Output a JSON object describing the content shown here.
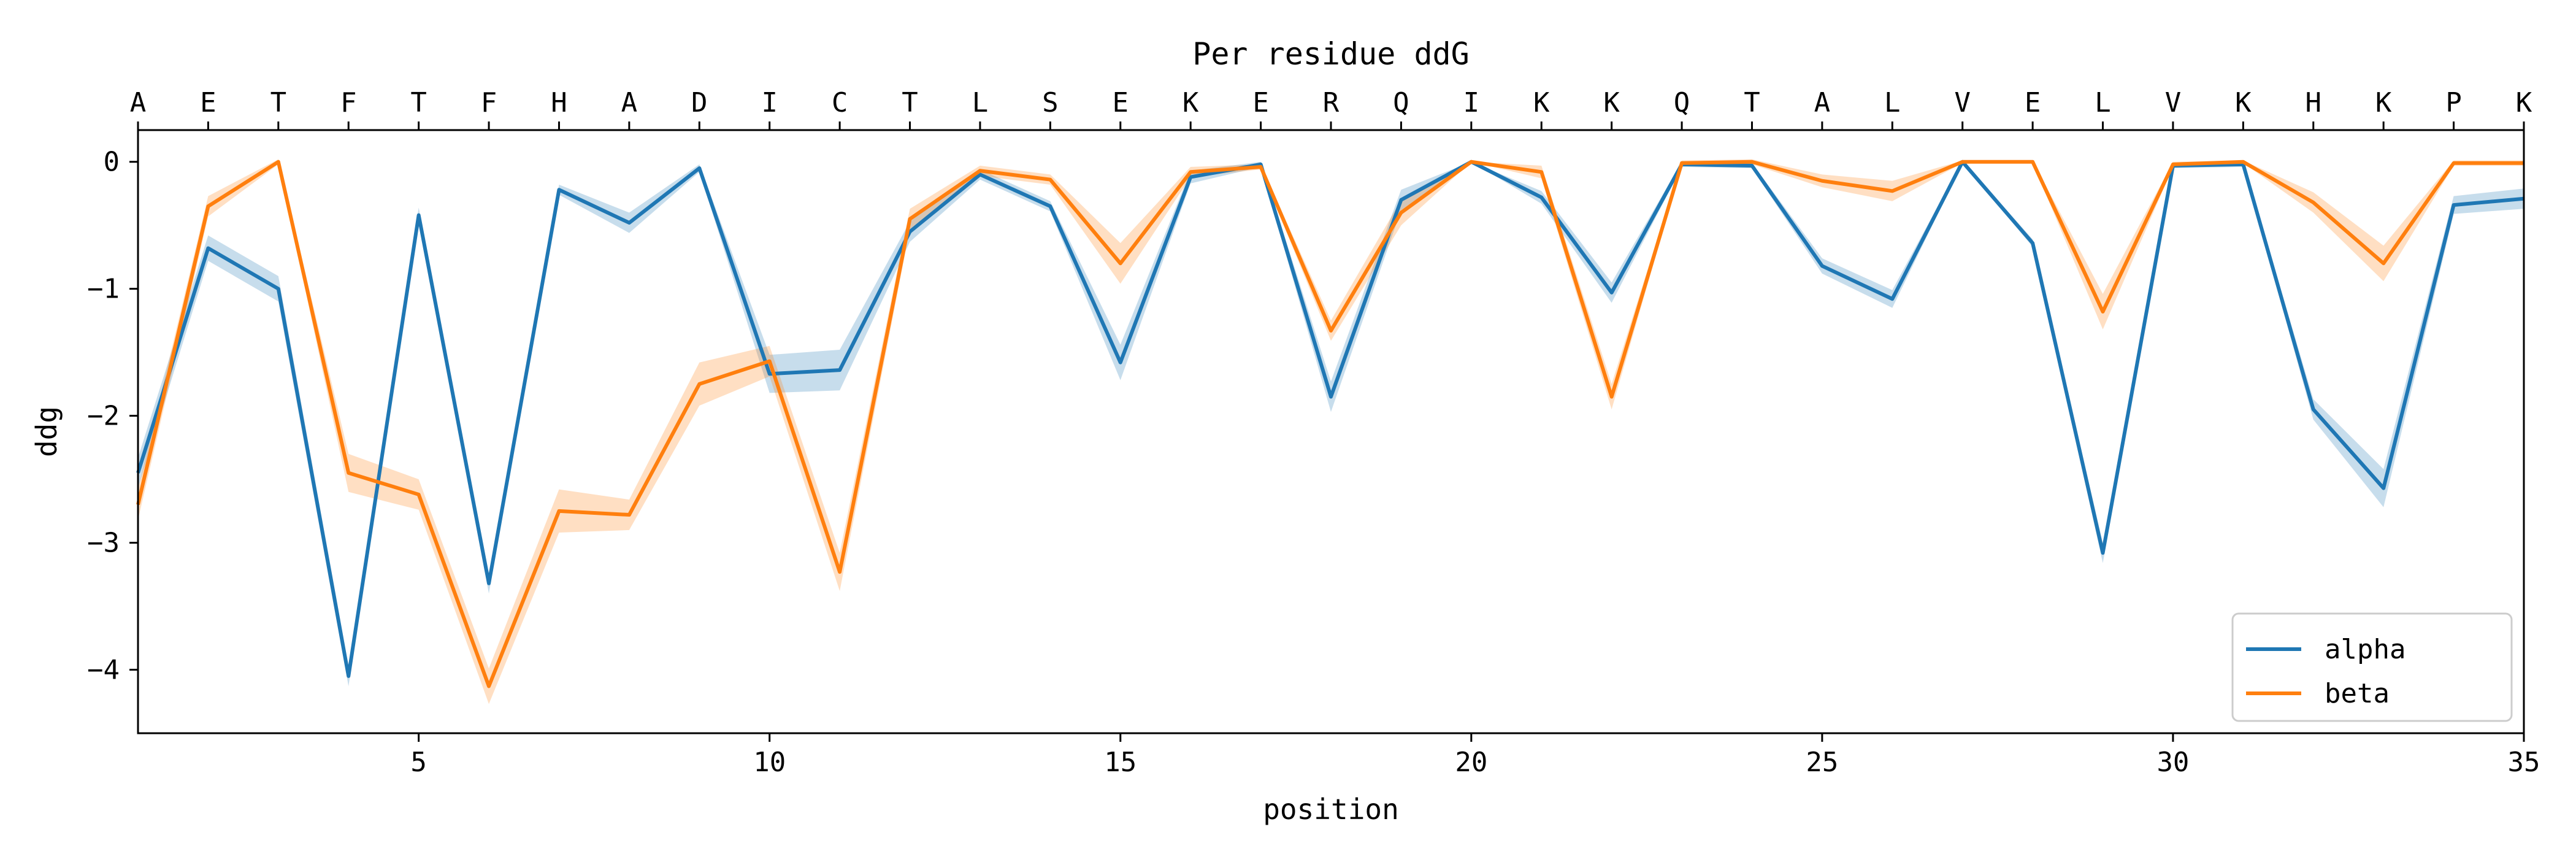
{
  "chart_data": {
    "type": "line",
    "title": "Per residue ddG",
    "xlabel": "position",
    "ylabel": "ddg",
    "xlim": [
      1,
      35
    ],
    "ylim": [
      -4.5,
      0.25
    ],
    "x_ticks": [
      5,
      10,
      15,
      20,
      25,
      30,
      35
    ],
    "y_ticks": [
      0,
      -1,
      -2,
      -3,
      -4
    ],
    "top_labels": [
      "A",
      "E",
      "T",
      "F",
      "T",
      "F",
      "H",
      "A",
      "D",
      "I",
      "C",
      "T",
      "L",
      "S",
      "E",
      "K",
      "E",
      "R",
      "Q",
      "I",
      "K",
      "K",
      "Q",
      "T",
      "A",
      "L",
      "V",
      "E",
      "L",
      "V",
      "K",
      "H",
      "K",
      "P",
      "K"
    ],
    "grid": false,
    "legend_position": "bottom-right",
    "x": [
      1,
      2,
      3,
      4,
      5,
      6,
      7,
      8,
      9,
      10,
      11,
      12,
      13,
      14,
      15,
      16,
      17,
      18,
      19,
      20,
      21,
      22,
      23,
      24,
      25,
      26,
      27,
      28,
      29,
      30,
      31,
      32,
      33,
      34,
      35
    ],
    "series": [
      {
        "name": "alpha",
        "color": "#1f77b4",
        "values": [
          -2.45,
          -0.68,
          -1.0,
          -4.05,
          -0.42,
          -3.32,
          -0.22,
          -0.48,
          -0.05,
          -1.67,
          -1.64,
          -0.55,
          -0.1,
          -0.35,
          -1.58,
          -0.12,
          -0.02,
          -1.85,
          -0.3,
          0.0,
          -0.28,
          -1.03,
          -0.02,
          -0.03,
          -0.82,
          -1.08,
          0.0,
          -0.64,
          -3.08,
          -0.03,
          -0.02,
          -1.95,
          -2.57,
          -0.34,
          -0.29
        ],
        "band": [
          0.12,
          0.1,
          0.1,
          0.08,
          0.06,
          0.08,
          0.04,
          0.08,
          0.03,
          0.15,
          0.16,
          0.08,
          0.04,
          0.04,
          0.14,
          0.05,
          0.02,
          0.12,
          0.08,
          0.0,
          0.05,
          0.08,
          0.02,
          0.02,
          0.06,
          0.07,
          0.01,
          0.03,
          0.08,
          0.02,
          0.02,
          0.08,
          0.15,
          0.07,
          0.08
        ]
      },
      {
        "name": "beta",
        "color": "#ff7f0e",
        "values": [
          -2.7,
          -0.35,
          0.0,
          -2.45,
          -2.62,
          -4.13,
          -2.75,
          -2.78,
          -1.75,
          -1.57,
          -3.23,
          -0.45,
          -0.07,
          -0.14,
          -0.8,
          -0.08,
          -0.04,
          -1.33,
          -0.4,
          0.0,
          -0.08,
          -1.85,
          -0.01,
          0.0,
          -0.15,
          -0.23,
          0.0,
          0.0,
          -1.18,
          -0.02,
          0.0,
          -0.32,
          -0.8,
          -0.01,
          -0.01
        ],
        "band": [
          0.12,
          0.08,
          0.02,
          0.15,
          0.12,
          0.14,
          0.17,
          0.12,
          0.17,
          0.12,
          0.15,
          0.08,
          0.04,
          0.04,
          0.16,
          0.04,
          0.02,
          0.08,
          0.1,
          0.0,
          0.05,
          0.1,
          0.02,
          0.02,
          0.05,
          0.08,
          0.01,
          0.01,
          0.14,
          0.02,
          0.01,
          0.08,
          0.14,
          0.02,
          0.02
        ]
      }
    ]
  }
}
